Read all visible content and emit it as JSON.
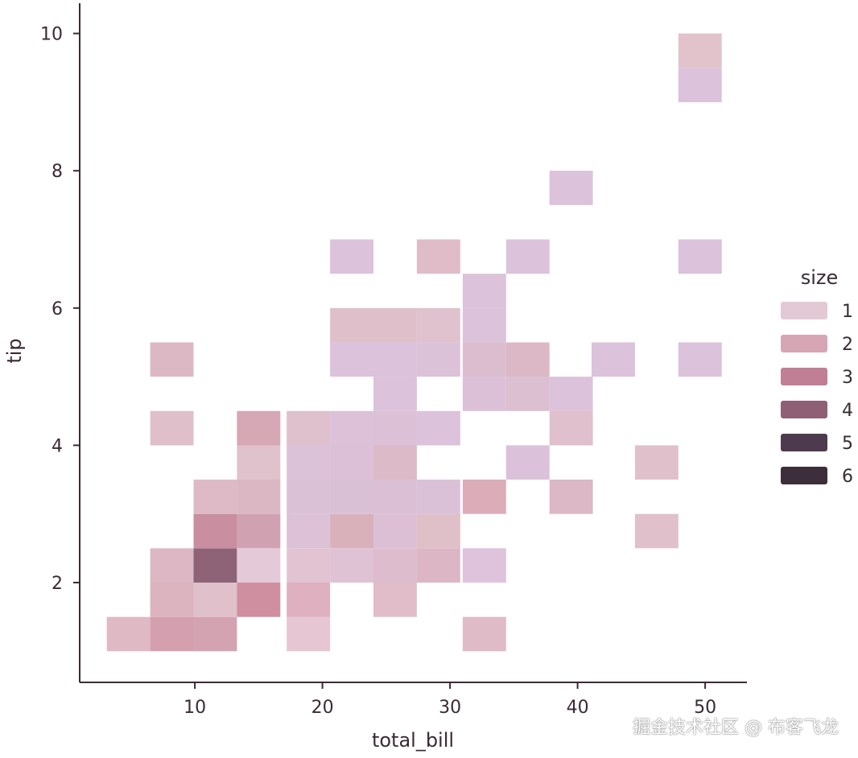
{
  "chart_data": {
    "type": "heatmap",
    "title": "",
    "xlabel": "total_bill",
    "ylabel": "tip",
    "xlim": [
      1,
      53
    ],
    "ylim": [
      0.8,
      10.4
    ],
    "xticks": [
      10,
      20,
      30,
      40,
      50
    ],
    "yticks": [
      2,
      4,
      6,
      8,
      10
    ],
    "bin_width_x": 3.4,
    "bin_height_y": 0.5,
    "legend": {
      "title": "size",
      "placement": "right",
      "entries": [
        "1",
        "2",
        "3",
        "4",
        "5",
        "6"
      ],
      "colors": [
        "#e3c9d5",
        "#d6a6b4",
        "#c07f95",
        "#8e5f75",
        "#4e3a4e",
        "#3c2f3b"
      ]
    },
    "cells": [
      {
        "x": 3.1,
        "y": 1.0,
        "color": "#dfb9c4"
      },
      {
        "x": 6.5,
        "y": 1.0,
        "color": "#d49fae"
      },
      {
        "x": 9.9,
        "y": 1.0,
        "color": "#d3a3b1"
      },
      {
        "x": 17.2,
        "y": 1.0,
        "color": "#e5c6d2"
      },
      {
        "x": 31.0,
        "y": 1.0,
        "color": "#dfbac7"
      },
      {
        "x": 6.5,
        "y": 1.5,
        "color": "#dcb4c0"
      },
      {
        "x": 9.9,
        "y": 1.5,
        "color": "#e0c0ca"
      },
      {
        "x": 13.3,
        "y": 1.5,
        "color": "#cf8fa1"
      },
      {
        "x": 17.2,
        "y": 1.5,
        "color": "#dfb0bf"
      },
      {
        "x": 24.0,
        "y": 1.5,
        "color": "#e0bdc8"
      },
      {
        "x": 6.5,
        "y": 2.0,
        "color": "#ddb7c3"
      },
      {
        "x": 9.9,
        "y": 2.0,
        "color": "#8e6378"
      },
      {
        "x": 13.3,
        "y": 2.0,
        "color": "#e4c9d9"
      },
      {
        "x": 17.2,
        "y": 2.0,
        "color": "#e1c3d2"
      },
      {
        "x": 20.6,
        "y": 2.0,
        "color": "#e0c2d5"
      },
      {
        "x": 24.0,
        "y": 2.0,
        "color": "#dcbccd"
      },
      {
        "x": 27.4,
        "y": 2.0,
        "color": "#dcb6c5"
      },
      {
        "x": 31.0,
        "y": 2.0,
        "color": "#dfc2db"
      },
      {
        "x": 9.9,
        "y": 2.5,
        "color": "#c98e9f"
      },
      {
        "x": 13.3,
        "y": 2.5,
        "color": "#d0a1b0"
      },
      {
        "x": 17.2,
        "y": 2.5,
        "color": "#dcc1d7"
      },
      {
        "x": 20.6,
        "y": 2.5,
        "color": "#d9b1bb"
      },
      {
        "x": 24.0,
        "y": 2.5,
        "color": "#dcbfd5"
      },
      {
        "x": 27.4,
        "y": 2.5,
        "color": "#dfbfc8"
      },
      {
        "x": 44.5,
        "y": 2.5,
        "color": "#e0c0cb"
      },
      {
        "x": 9.9,
        "y": 3.0,
        "color": "#ddbac6"
      },
      {
        "x": 13.3,
        "y": 3.0,
        "color": "#dab7c3"
      },
      {
        "x": 17.2,
        "y": 3.0,
        "color": "#dac1d6"
      },
      {
        "x": 20.6,
        "y": 3.0,
        "color": "#dac0d5"
      },
      {
        "x": 24.0,
        "y": 3.0,
        "color": "#dbbfd5"
      },
      {
        "x": 27.4,
        "y": 3.0,
        "color": "#dbc1d8"
      },
      {
        "x": 31.0,
        "y": 3.0,
        "color": "#dcacb9"
      },
      {
        "x": 37.8,
        "y": 3.0,
        "color": "#dcb7c6"
      },
      {
        "x": 13.3,
        "y": 3.5,
        "color": "#e0c2cc"
      },
      {
        "x": 17.2,
        "y": 3.5,
        "color": "#dcc2d8"
      },
      {
        "x": 20.6,
        "y": 3.5,
        "color": "#dcc0d7"
      },
      {
        "x": 24.0,
        "y": 3.5,
        "color": "#dcbac8"
      },
      {
        "x": 34.4,
        "y": 3.5,
        "color": "#dcc1da"
      },
      {
        "x": 44.5,
        "y": 3.5,
        "color": "#e0c0cb"
      },
      {
        "x": 6.5,
        "y": 4.0,
        "color": "#dfbfca"
      },
      {
        "x": 13.3,
        "y": 4.0,
        "color": "#d6a7b5"
      },
      {
        "x": 17.2,
        "y": 4.0,
        "color": "#dfc0cd"
      },
      {
        "x": 20.6,
        "y": 4.0,
        "color": "#dcc1d8"
      },
      {
        "x": 24.0,
        "y": 4.0,
        "color": "#dcc0d6"
      },
      {
        "x": 27.4,
        "y": 4.0,
        "color": "#dcc2db"
      },
      {
        "x": 37.8,
        "y": 4.0,
        "color": "#e0c0cc"
      },
      {
        "x": 24.0,
        "y": 4.5,
        "color": "#dcc2db"
      },
      {
        "x": 31.0,
        "y": 4.5,
        "color": "#dcc0d7"
      },
      {
        "x": 34.4,
        "y": 4.5,
        "color": "#dcbfd0"
      },
      {
        "x": 37.8,
        "y": 4.5,
        "color": "#dcc2da"
      },
      {
        "x": 6.5,
        "y": 5.0,
        "color": "#dcb8c4"
      },
      {
        "x": 20.6,
        "y": 5.0,
        "color": "#dcc2da"
      },
      {
        "x": 24.0,
        "y": 5.0,
        "color": "#dcc2da"
      },
      {
        "x": 27.4,
        "y": 5.0,
        "color": "#dcc2d8"
      },
      {
        "x": 31.0,
        "y": 5.0,
        "color": "#dcbdcf"
      },
      {
        "x": 34.4,
        "y": 5.0,
        "color": "#dcb8c6"
      },
      {
        "x": 41.1,
        "y": 5.0,
        "color": "#dcc2da"
      },
      {
        "x": 47.9,
        "y": 5.0,
        "color": "#dcc2da"
      },
      {
        "x": 20.6,
        "y": 5.5,
        "color": "#dfbfca"
      },
      {
        "x": 24.0,
        "y": 5.5,
        "color": "#dfbfca"
      },
      {
        "x": 27.4,
        "y": 5.5,
        "color": "#e0c2cf"
      },
      {
        "x": 31.0,
        "y": 5.5,
        "color": "#dcc2da"
      },
      {
        "x": 31.0,
        "y": 6.0,
        "color": "#dcc2da"
      },
      {
        "x": 20.6,
        "y": 6.5,
        "color": "#dcc2da"
      },
      {
        "x": 27.4,
        "y": 6.5,
        "color": "#dfbcc8"
      },
      {
        "x": 34.4,
        "y": 6.5,
        "color": "#dcc2da"
      },
      {
        "x": 47.9,
        "y": 6.5,
        "color": "#dcc2da"
      },
      {
        "x": 37.8,
        "y": 7.5,
        "color": "#dcc2da"
      },
      {
        "x": 47.9,
        "y": 9.0,
        "color": "#dcc2da"
      },
      {
        "x": 47.9,
        "y": 9.5,
        "color": "#e2c3cc"
      }
    ]
  },
  "watermark": "掘金技术社区 @ 布客飞龙"
}
